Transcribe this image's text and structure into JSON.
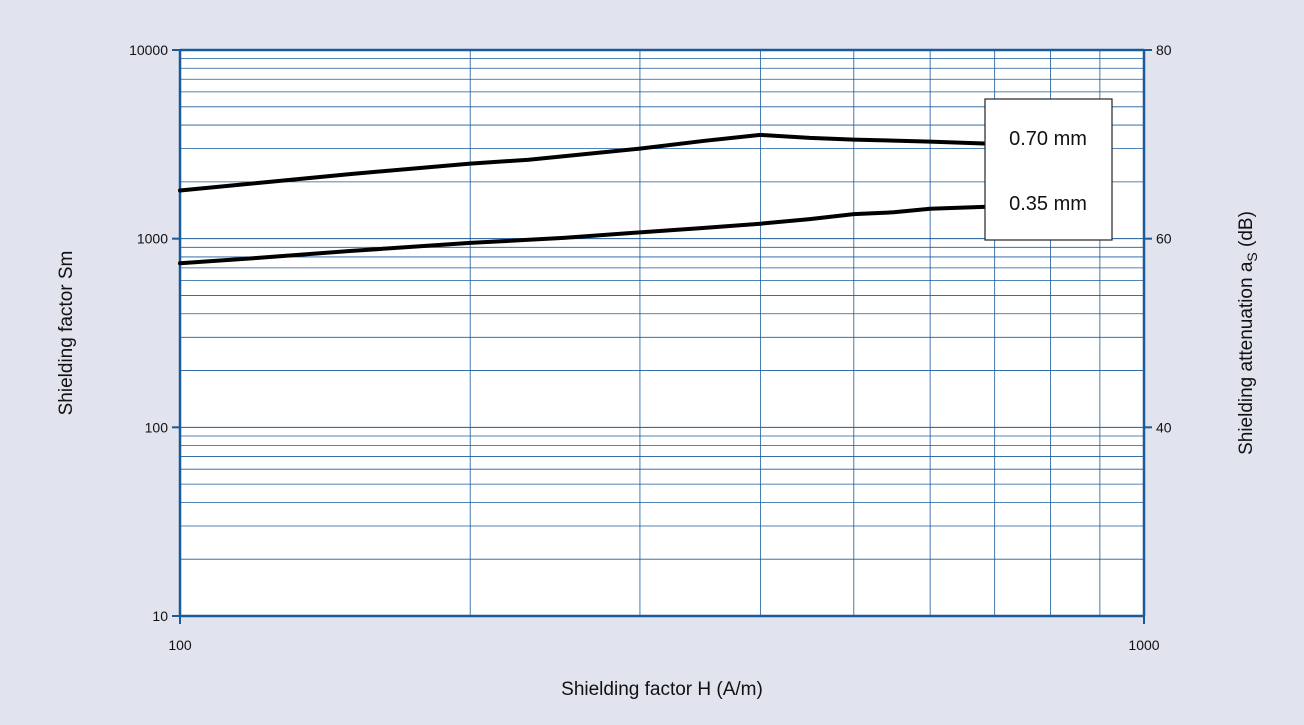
{
  "chart_data": {
    "type": "line",
    "xlabel": "Shielding factor H (A/m)",
    "ylabel": "Shielding factor Sm",
    "y2label": "Shielding attenuation a",
    "y2label_sub": "S",
    "y2label_unit": " (dB)",
    "x_scale": "log",
    "y_scale": "log",
    "xlim": [
      100,
      1000
    ],
    "ylim": [
      10,
      10000
    ],
    "y2lim": [
      20,
      80
    ],
    "x_ticks": [
      100,
      1000
    ],
    "x_tick_labels": [
      "100",
      "1000"
    ],
    "y_ticks": [
      10,
      100,
      1000,
      10000
    ],
    "y_tick_labels": [
      "10",
      "100",
      "1000",
      "10000"
    ],
    "y2_ticks": [
      40,
      60,
      80
    ],
    "y2_tick_labels": [
      "40",
      "60",
      "80"
    ],
    "grid": true,
    "legend_position": "top-right",
    "series": [
      {
        "name": "0.70 mm",
        "x": [
          100,
          120,
          150,
          200,
          230,
          300,
          350,
          400,
          450,
          500,
          600,
          700
        ],
        "values": [
          1800,
          1970,
          2200,
          2500,
          2620,
          3000,
          3300,
          3550,
          3420,
          3350,
          3270,
          3180
        ]
      },
      {
        "name": "0.35 mm",
        "x": [
          100,
          120,
          150,
          200,
          250,
          300,
          350,
          400,
          450,
          500,
          550,
          600,
          700
        ],
        "values": [
          740,
          790,
          860,
          950,
          1010,
          1080,
          1140,
          1200,
          1270,
          1350,
          1380,
          1440,
          1480
        ]
      }
    ],
    "colors": {
      "axis": "#1a5a9b",
      "grid": "#1a5a9b",
      "line": "#000000",
      "background": "#e1e4ee",
      "plot_background": "#ffffff"
    }
  }
}
